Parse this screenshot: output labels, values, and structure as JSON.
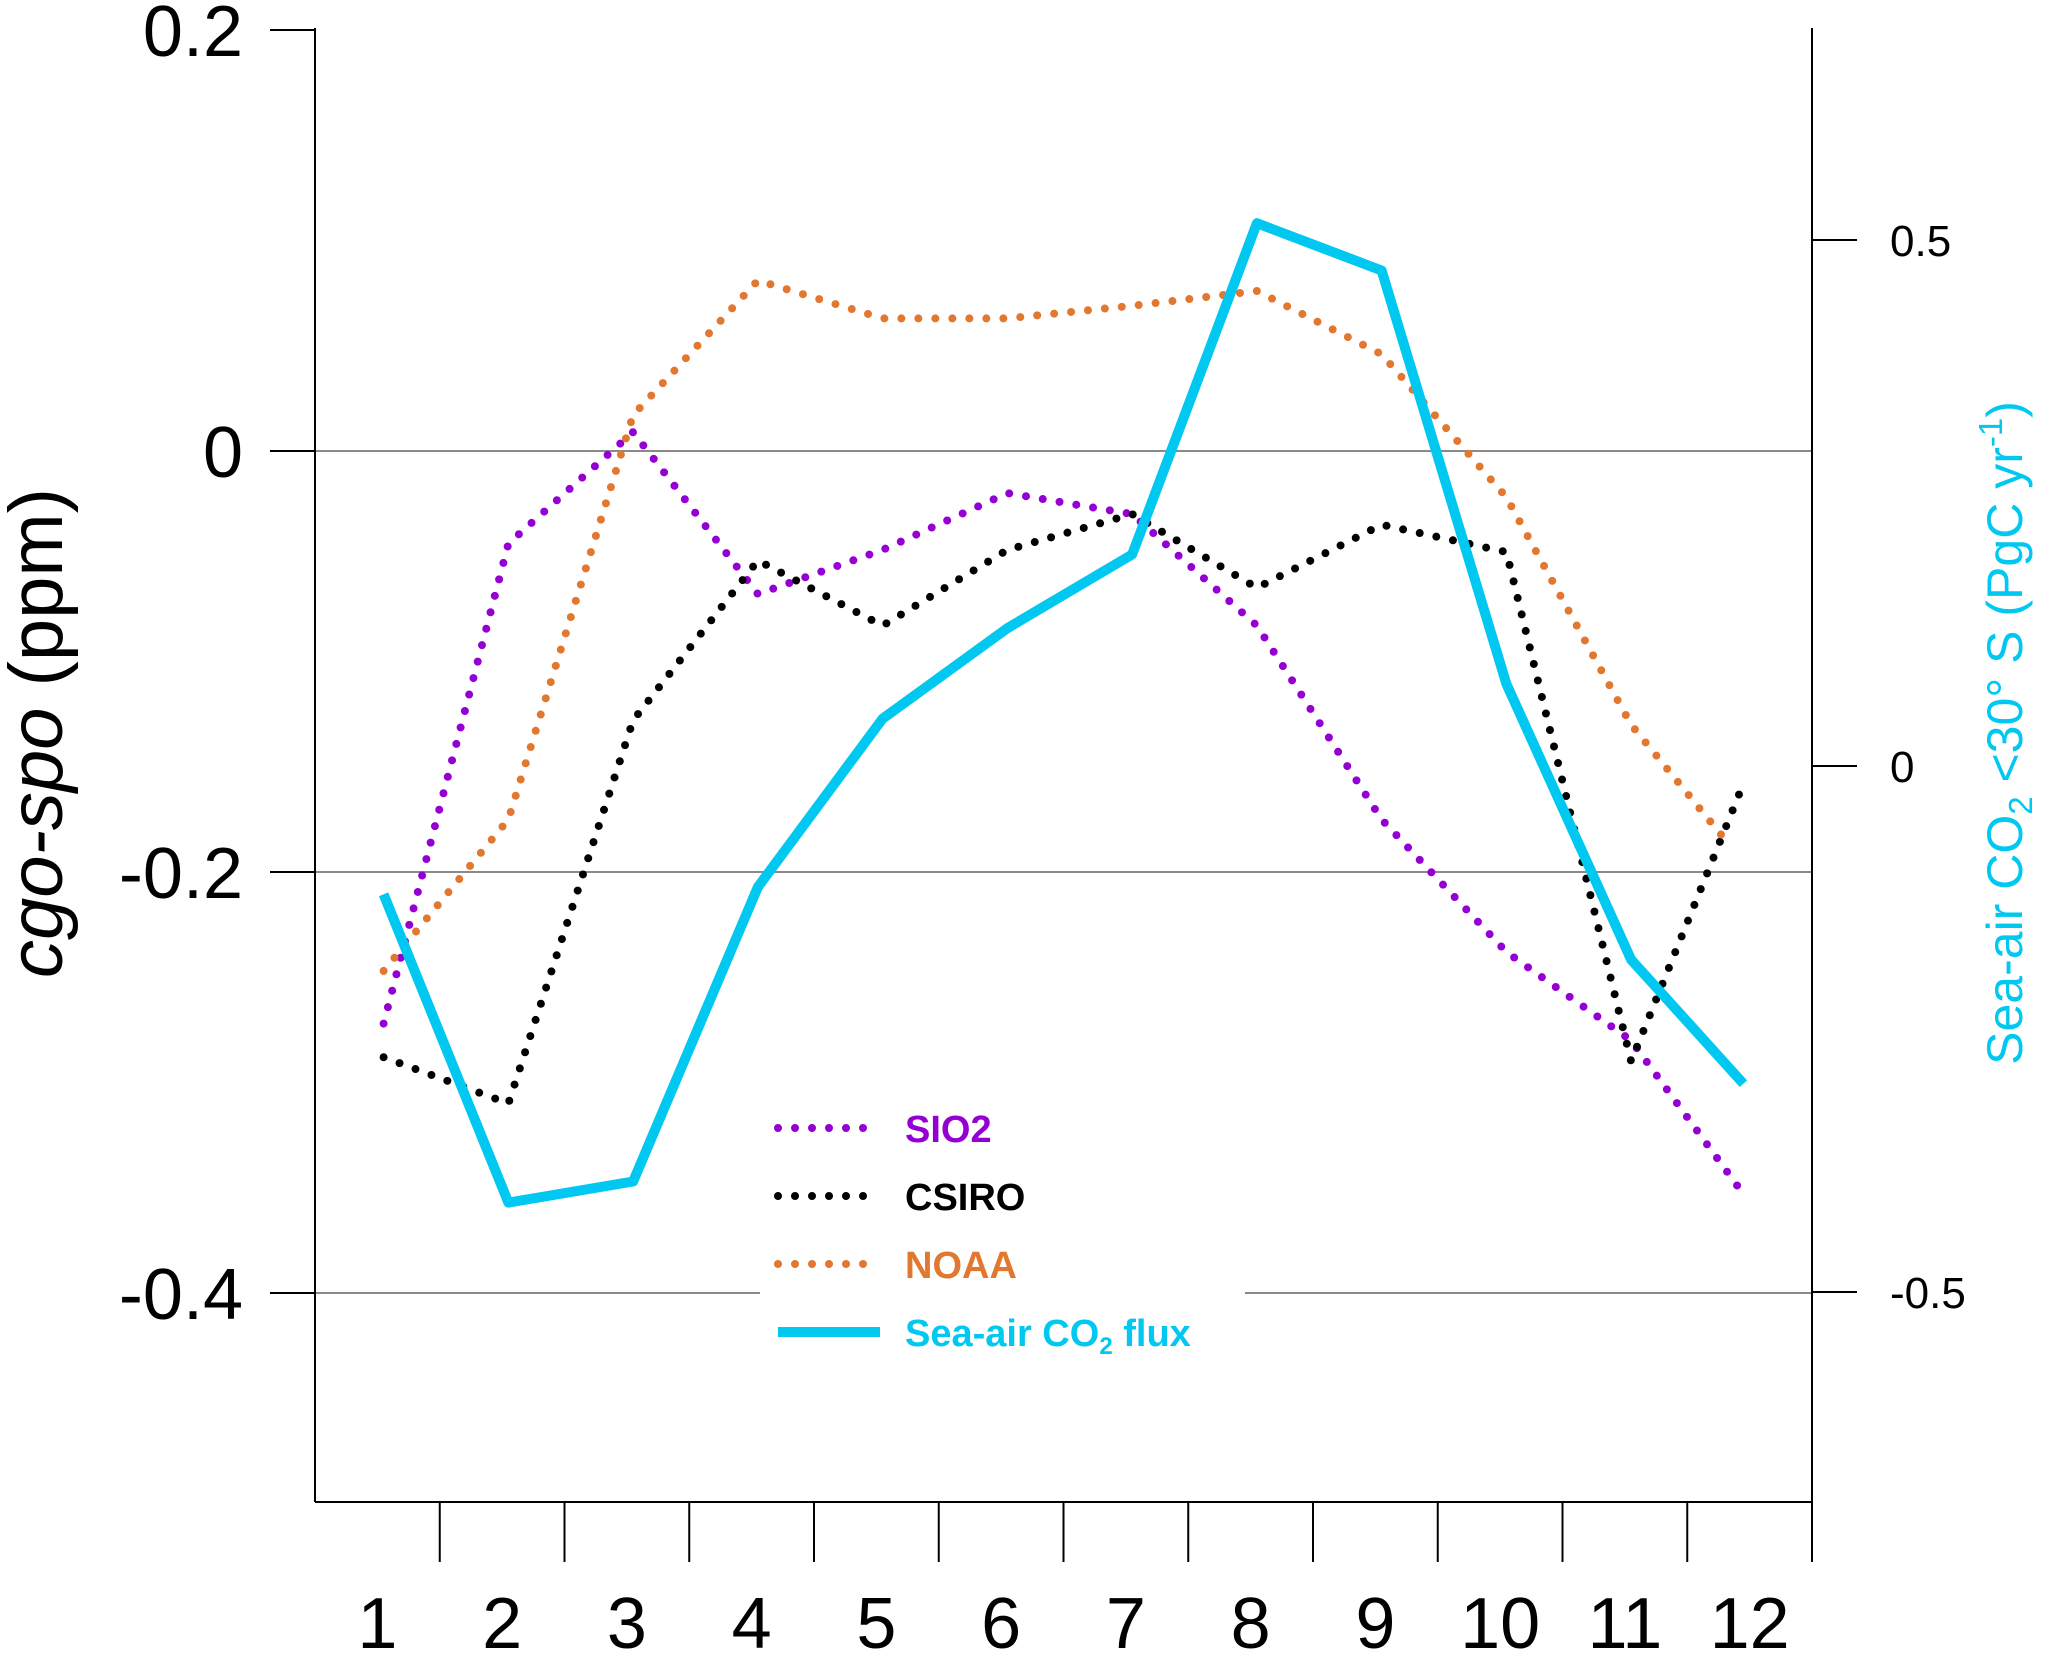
{
  "chart_data": {
    "type": "line",
    "categories": [
      "1",
      "2",
      "3",
      "4",
      "5",
      "6",
      "7",
      "8",
      "9",
      "10",
      "11",
      "12"
    ],
    "x_tick_labels": [
      "1",
      "2",
      "3",
      "4",
      "5",
      "6",
      "7",
      "8",
      "9",
      "10",
      "11",
      "12"
    ],
    "ylabel_left_italic": "cgo-spo",
    "ylabel_left_units": " (ppm)",
    "ylabel_right": {
      "prefix": "Sea-air CO",
      "sub": "2",
      "mid": " <30° S (PgC yr",
      "sup": "-1",
      "suffix": ")"
    },
    "left_axis": {
      "min": -0.5,
      "max": 0.2,
      "ticks": [
        0.2,
        0,
        -0.2,
        -0.4
      ],
      "tick_labels": [
        "0.2",
        "0",
        "-0.2",
        "-0.4"
      ]
    },
    "right_axis": {
      "ticks": [
        0.5,
        0,
        -0.5
      ],
      "tick_labels": [
        "0.5",
        "0",
        "-0.5"
      ],
      "max_at_left": 0.2,
      "min_at_left": -0.5
    },
    "gridlines_left": [
      0,
      -0.2,
      -0.4
    ],
    "legend_position": "lower-center",
    "series": [
      {
        "name": "SIO2",
        "axis": "left",
        "style": "dotted",
        "color": "#9400d3",
        "x": [
          0.55,
          1.55,
          2.55,
          3.55,
          4.55,
          5.55,
          6.55,
          7.55,
          8.55,
          9.55,
          10.55,
          11.45
        ],
        "values": [
          -0.272,
          -0.044,
          0.009,
          -0.068,
          -0.047,
          -0.02,
          -0.03,
          -0.083,
          -0.175,
          -0.238,
          -0.28,
          -0.353
        ]
      },
      {
        "name": "CSIRO",
        "axis": "left",
        "style": "dotted",
        "color": "#000000",
        "x": [
          0.55,
          1.55,
          2.55,
          3.55,
          4.55,
          5.55,
          6.55,
          7.55,
          8.55,
          9.55,
          10.55,
          11.45
        ],
        "values": [
          -0.288,
          -0.31,
          -0.128,
          -0.052,
          -0.083,
          -0.047,
          -0.03,
          -0.065,
          -0.035,
          -0.048,
          -0.29,
          -0.158
        ]
      },
      {
        "name": "NOAA",
        "axis": "left",
        "style": "dotted",
        "color": "#e2772f",
        "x": [
          0.55,
          1.55,
          2.55,
          3.55,
          4.55,
          5.55,
          6.55,
          7.55,
          8.55,
          9.55,
          10.55,
          11.35
        ],
        "values": [
          -0.247,
          -0.175,
          0.017,
          0.081,
          0.063,
          0.063,
          0.069,
          0.076,
          0.046,
          -0.022,
          -0.13,
          -0.188
        ]
      },
      {
        "name": "Sea-air CO2 flux",
        "axis": "right",
        "style": "solid",
        "color": "#00c8f0",
        "x": [
          0.55,
          1.55,
          2.55,
          3.55,
          4.55,
          5.55,
          6.55,
          7.55,
          8.55,
          9.55,
          10.55,
          11.45
        ],
        "values": [
          -0.122,
          -0.415,
          -0.395,
          -0.115,
          0.045,
          0.131,
          0.201,
          0.516,
          0.471,
          0.078,
          -0.184,
          -0.302
        ]
      }
    ],
    "legend": [
      {
        "label": "SIO2",
        "color": "#9400d3",
        "style": "dotted"
      },
      {
        "label": "CSIRO",
        "color": "#000000",
        "style": "dotted"
      },
      {
        "label": "NOAA",
        "color": "#e2772f",
        "style": "dotted"
      },
      {
        "label_prefix": "Sea-air CO",
        "label_sub": "2",
        "label_suffix": " flux",
        "color": "#00c8f0",
        "style": "solid"
      }
    ]
  }
}
